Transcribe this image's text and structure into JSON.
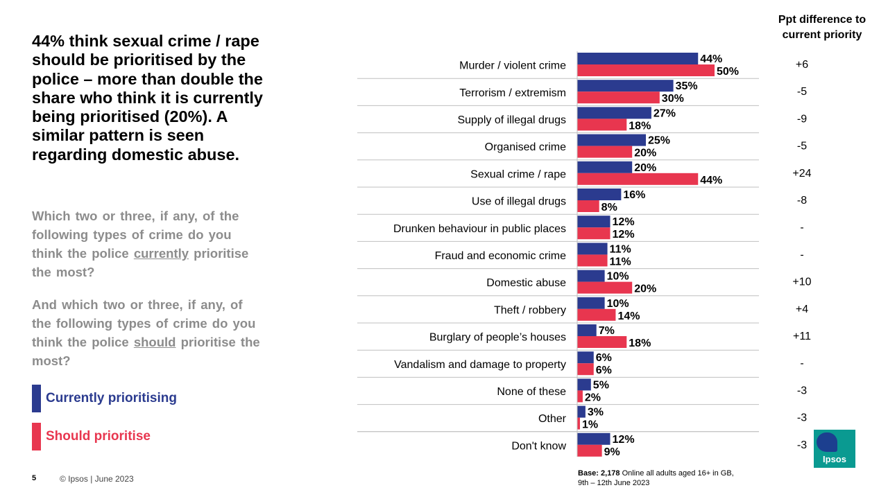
{
  "headline": "44% think sexual crime / rape should be prioritised by the police – more than double the share who think it is currently being prioritised (20%). A similar pattern is seen regarding domestic abuse.",
  "question_1": {
    "part1": "Which two or three, if any, of the following types of crime do you think the police ",
    "underlined": "currently",
    "part2": " prioritise the most?"
  },
  "question_2": {
    "part1": "And which two or three, if any, of the following types of crime do you think the police ",
    "underlined": "should",
    "part2": " prioritise the most?"
  },
  "legend": {
    "current_label": "Currently prioritising",
    "should_label": "Should prioritise"
  },
  "column_header": {
    "line1": "Ppt difference to",
    "line2": "current priority"
  },
  "footer": {
    "page_number": "5",
    "copyright": "© Ipsos | June 2023",
    "base_bold": "Base: 2,178",
    "base_rest": " Online all adults aged 16+ in GB,",
    "base_line2": "9th – 12th June 2023"
  },
  "logo_text": "Ipsos",
  "colors": {
    "current": "#2b3b8f",
    "should": "#e8364f",
    "current_text": "#2b3b8f",
    "should_text": "#e8364f",
    "logo": "#0a9a91"
  },
  "chart_data": {
    "type": "bar",
    "orientation": "horizontal",
    "categories": [
      "Murder / violent crime",
      "Terrorism / extremism",
      "Supply of illegal drugs",
      "Organised crime",
      "Sexual crime / rape",
      "Use of illegal drugs",
      "Drunken behaviour in public places",
      "Fraud and economic crime",
      "Domestic abuse",
      "Theft / robbery",
      "Burglary of people’s houses",
      "Vandalism and damage to property",
      "None of these",
      "Other",
      "Don't know"
    ],
    "series": [
      {
        "name": "Currently prioritising",
        "values": [
          44,
          35,
          27,
          25,
          20,
          16,
          12,
          11,
          10,
          10,
          7,
          6,
          5,
          3,
          12
        ]
      },
      {
        "name": "Should prioritise",
        "values": [
          50,
          30,
          18,
          20,
          44,
          8,
          12,
          11,
          20,
          14,
          18,
          6,
          2,
          1,
          9
        ]
      }
    ],
    "ppt_difference": [
      "+6",
      "-5",
      "-9",
      "-5",
      "+24",
      "-8",
      "-",
      "-",
      "+10",
      "+4",
      "+11",
      "-",
      "-3",
      "-3",
      "-3"
    ],
    "value_suffix": "%",
    "xlim": [
      0,
      100
    ]
  }
}
